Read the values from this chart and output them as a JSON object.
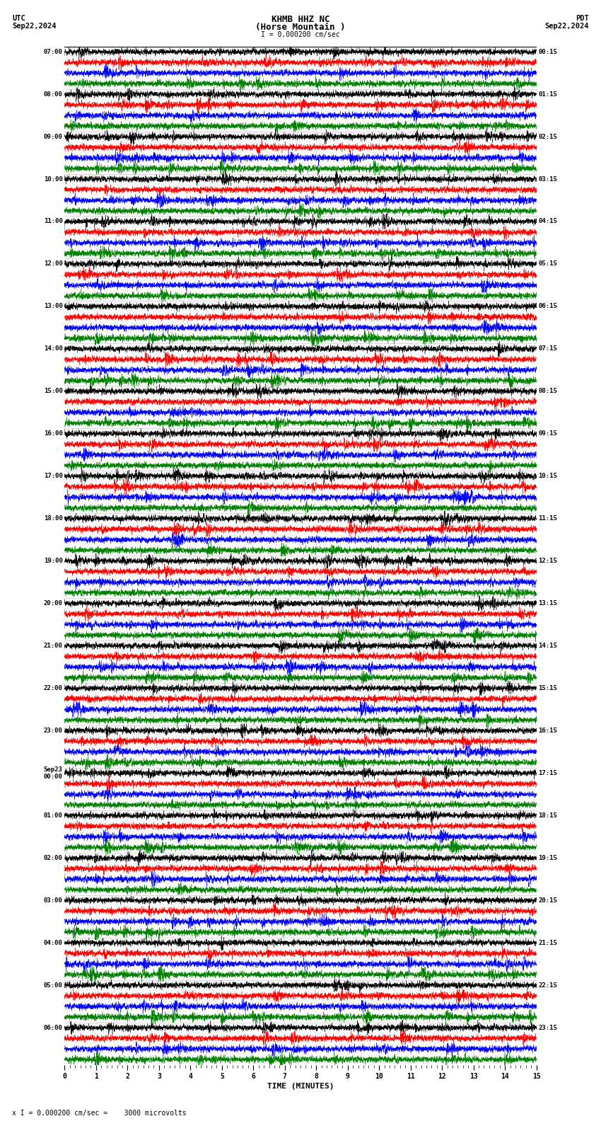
{
  "title_line1": "KHMB HHZ NC",
  "title_line2": "(Horse Mountain )",
  "scale_label": "I = 0.000200 cm/sec",
  "footer_label": "x I = 0.000200 cm/sec =    3000 microvolts",
  "utc_label": "UTC",
  "pdt_label": "PDT",
  "date_left": "Sep22,2024",
  "date_right": "Sep22,2024",
  "xlabel": "TIME (MINUTES)",
  "left_times": [
    "07:00",
    "08:00",
    "09:00",
    "10:00",
    "11:00",
    "12:00",
    "13:00",
    "14:00",
    "15:00",
    "16:00",
    "17:00",
    "18:00",
    "19:00",
    "20:00",
    "21:00",
    "22:00",
    "23:00",
    "Sep23\n00:00",
    "01:00",
    "02:00",
    "03:00",
    "04:00",
    "05:00",
    "06:00"
  ],
  "right_times": [
    "00:15",
    "01:15",
    "02:15",
    "03:15",
    "04:15",
    "05:15",
    "06:15",
    "07:15",
    "08:15",
    "09:15",
    "10:15",
    "11:15",
    "12:15",
    "13:15",
    "14:15",
    "15:15",
    "16:15",
    "17:15",
    "18:15",
    "19:15",
    "20:15",
    "21:15",
    "22:15",
    "23:15"
  ],
  "colors": [
    "black",
    "red",
    "blue",
    "green"
  ],
  "bg_color": "white",
  "n_rows": 24,
  "traces_per_row": 4,
  "minutes": 15,
  "noise_seed": 42
}
